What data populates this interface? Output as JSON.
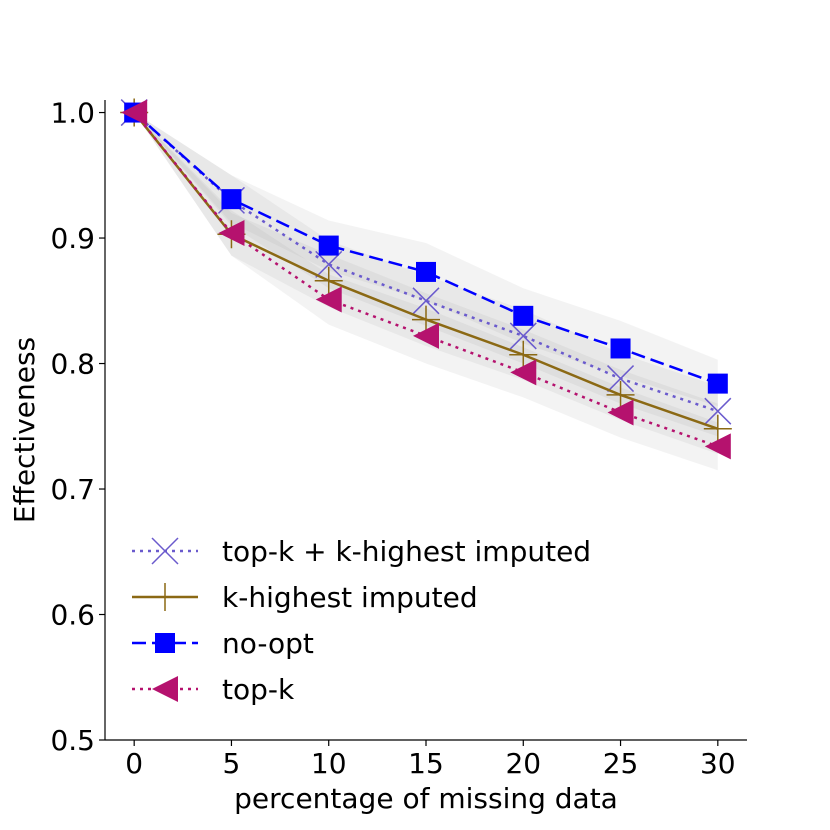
{
  "chart_data": {
    "type": "line",
    "title": "",
    "xlabel": "percentage of missing data",
    "ylabel": "Effectiveness",
    "xlim": [
      -1.5,
      31.5
    ],
    "ylim": [
      0.5,
      1.01
    ],
    "x": [
      0,
      5,
      10,
      15,
      20,
      25,
      30
    ],
    "xticks": [
      "0",
      "5",
      "10",
      "15",
      "20",
      "25",
      "30"
    ],
    "yticks": [
      "0.5",
      "0.6",
      "0.7",
      "0.8",
      "0.9",
      "1.0"
    ],
    "legend_position": "lower-left",
    "series": [
      {
        "name": "top-k + k-highest imputed",
        "values": [
          1.0,
          0.93,
          0.879,
          0.85,
          0.822,
          0.788,
          0.762
        ],
        "band": [
          [
            1.0,
            1.0
          ],
          [
            0.91,
            0.95
          ],
          [
            0.86,
            0.898
          ],
          [
            0.83,
            0.87
          ],
          [
            0.8,
            0.843
          ],
          [
            0.768,
            0.808
          ],
          [
            0.742,
            0.782
          ]
        ],
        "color": "#6a5acd",
        "line": "dotted",
        "marker": "x"
      },
      {
        "name": "k-highest imputed",
        "values": [
          1.0,
          0.903,
          0.866,
          0.835,
          0.807,
          0.775,
          0.748
        ],
        "band": [
          [
            1.0,
            1.0
          ],
          [
            0.886,
            0.92
          ],
          [
            0.845,
            0.887
          ],
          [
            0.814,
            0.856
          ],
          [
            0.787,
            0.827
          ],
          [
            0.755,
            0.795
          ],
          [
            0.728,
            0.768
          ]
        ],
        "color": "#8b6914",
        "line": "solid",
        "marker": "plus"
      },
      {
        "name": "no-opt",
        "values": [
          1.0,
          0.931,
          0.894,
          0.873,
          0.838,
          0.812,
          0.784
        ],
        "band": [
          [
            1.0,
            1.0
          ],
          [
            0.912,
            0.95
          ],
          [
            0.874,
            0.914
          ],
          [
            0.85,
            0.896
          ],
          [
            0.816,
            0.86
          ],
          [
            0.79,
            0.834
          ],
          [
            0.766,
            0.803
          ]
        ],
        "color": "#0000ff",
        "line": "dashed",
        "marker": "square"
      },
      {
        "name": "top-k",
        "values": [
          1.0,
          0.904,
          0.851,
          0.822,
          0.793,
          0.761,
          0.734
        ],
        "band": [
          [
            1.0,
            1.0
          ],
          [
            0.886,
            0.922
          ],
          [
            0.831,
            0.871
          ],
          [
            0.8,
            0.844
          ],
          [
            0.773,
            0.813
          ],
          [
            0.741,
            0.781
          ],
          [
            0.715,
            0.753
          ]
        ],
        "color": "#b5126e",
        "line": "dotted",
        "marker": "triangle-left"
      }
    ]
  }
}
